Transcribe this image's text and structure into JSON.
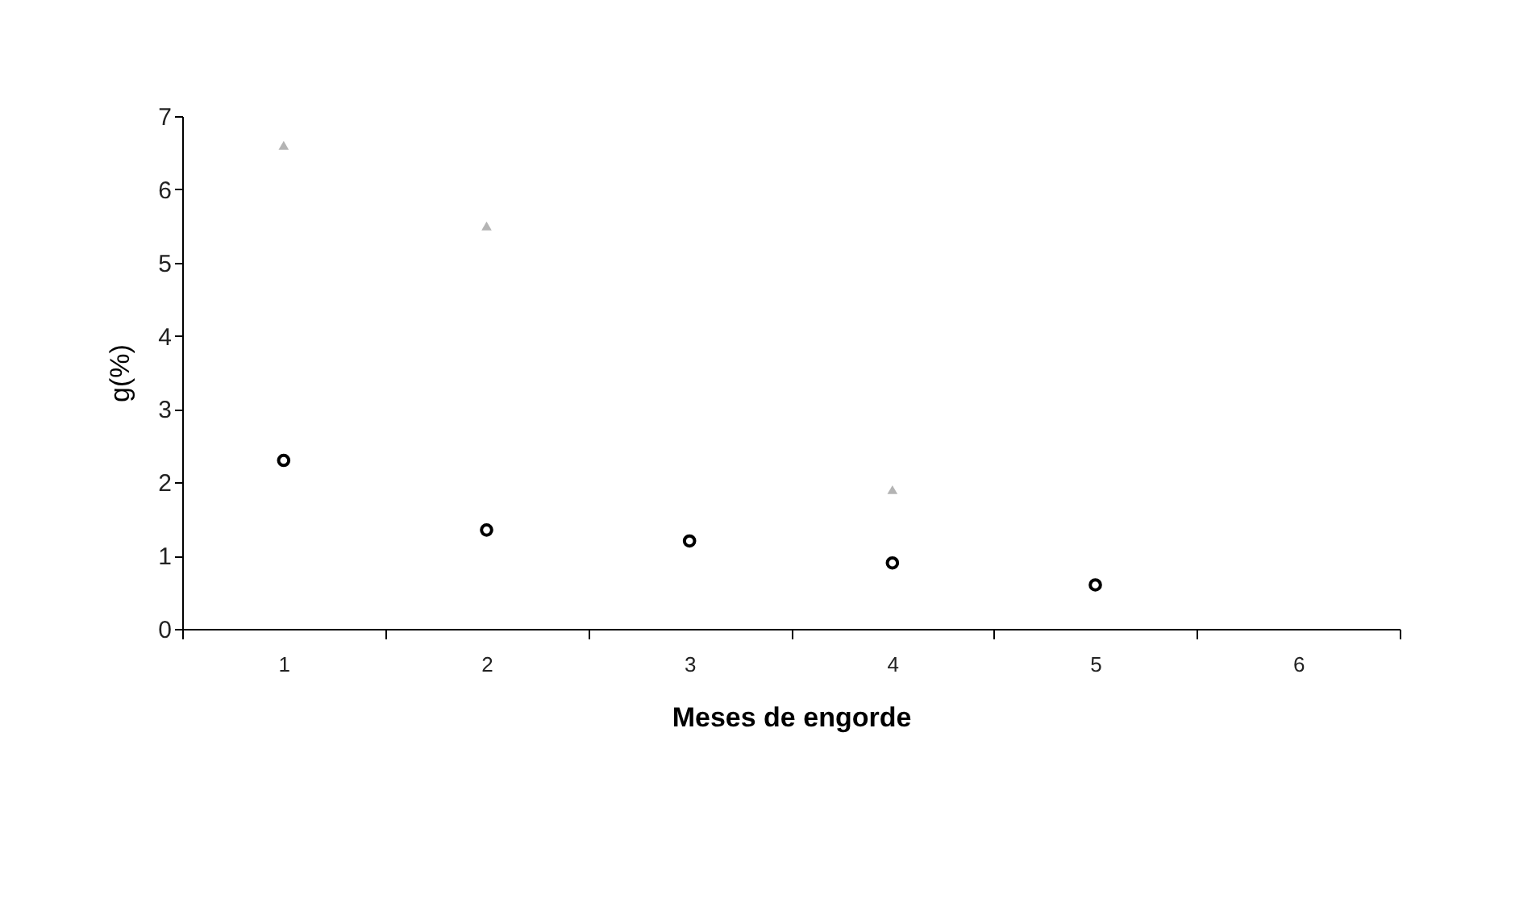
{
  "chart_data": {
    "type": "scatter",
    "xlabel": "Meses de engorde",
    "ylabel": "g(%)",
    "categories": [
      "1",
      "2",
      "3",
      "4",
      "5",
      "6"
    ],
    "series": [
      {
        "color": "#000000",
        "marker": "circle",
        "values": [
          2.3,
          1.35,
          1.2,
          0.9,
          0.6,
          null
        ]
      },
      {
        "color": "#b4b4b4",
        "marker": "triangle",
        "values": [
          6.6,
          5.5,
          null,
          1.9,
          null,
          null
        ]
      }
    ],
    "ylim": [
      0,
      7
    ],
    "yticks": [
      0,
      1,
      2,
      3,
      4,
      5,
      6,
      7
    ],
    "grid": false
  }
}
